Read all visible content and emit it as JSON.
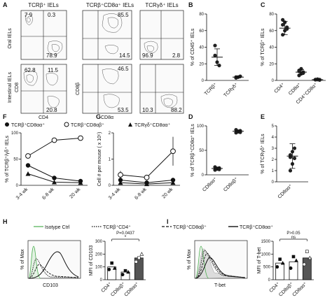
{
  "panel_letters": [
    "A",
    "B",
    "C",
    "D",
    "E",
    "F",
    "G",
    "H",
    "I"
  ],
  "A": {
    "col_titles": [
      "TCRβ⁺ IELs",
      "TCRβ⁺CD8α⁺ IELs",
      "TCRγδ⁺ IELs"
    ],
    "row_labels": [
      "Oral IELs",
      "Intestinal IELs"
    ],
    "axes": {
      "x1": "CD4",
      "y1": "CD8",
      "x2": "CD8α",
      "y2": "CD8β"
    },
    "oral": {
      "p1": [
        "7.9",
        "0.3",
        "78.9"
      ],
      "p2": [
        "85.5",
        "14.5"
      ],
      "p3": [
        "96.9",
        "2.8"
      ]
    },
    "intestinal": {
      "p1": [
        "62.8",
        "11.5",
        "20.8"
      ],
      "p2": [
        "46.5",
        "53.5"
      ],
      "p3": [
        "10.3",
        "88.2"
      ]
    }
  },
  "chart_data": [
    {
      "panel": "B",
      "type": "scatter",
      "ylabel": "% of CD45⁺ IELs",
      "ylim": [
        0,
        80
      ],
      "yticks": [
        0,
        20,
        40,
        60,
        80
      ],
      "categories": [
        "TCRβ⁺",
        "TCRγδ⁺"
      ],
      "points": [
        [
          30,
          22,
          18,
          42
        ],
        [
          3,
          4,
          5,
          4
        ]
      ],
      "means": [
        28,
        4
      ],
      "sd": [
        10,
        1
      ]
    },
    {
      "panel": "C",
      "type": "scatter",
      "ylabel": "% of TCRβ⁺ IELs",
      "ylim": [
        0,
        80
      ],
      "yticks": [
        0,
        20,
        40,
        60,
        80
      ],
      "categories": [
        "CD4⁺",
        "CD8α⁺",
        "CD4⁺CD8α⁺"
      ],
      "points": [
        [
          55,
          60,
          64,
          67,
          70,
          62,
          73
        ],
        [
          6,
          8,
          10,
          12,
          14,
          9,
          11
        ],
        [
          1,
          1,
          0.5,
          1,
          1.5,
          1,
          0.8
        ]
      ],
      "means": [
        63,
        10,
        1
      ],
      "sd": [
        8,
        3,
        0.5
      ]
    },
    {
      "panel": "D",
      "type": "scatter",
      "ylabel": "% of TCRβ⁺CD8α⁺ IELs",
      "ylim": [
        0,
        100
      ],
      "yticks": [
        0,
        50,
        100
      ],
      "categories": [
        "CD8αα⁺",
        "CD8αβ⁺"
      ],
      "points": [
        [
          10,
          12,
          14,
          16,
          13,
          11
        ],
        [
          86,
          88,
          90,
          92,
          89,
          87
        ]
      ],
      "means": [
        13,
        89
      ],
      "sd": [
        2,
        2
      ]
    },
    {
      "panel": "E",
      "type": "scatter",
      "ylabel": "% of TCRγδ⁺ IELs",
      "ylim": [
        0,
        5
      ],
      "yticks": [
        0,
        1,
        2,
        3,
        4,
        5
      ],
      "categories": [
        "CD8αα⁺"
      ],
      "points": [
        [
          1.0,
          1.6,
          2.1,
          2.4,
          2.7,
          3.0,
          2.2
        ]
      ],
      "means": [
        2.3
      ],
      "sd": [
        1.1
      ]
    },
    {
      "panel": "F",
      "type": "line",
      "ylabel": "% of TCRβ⁺/γδ⁺ IELs",
      "ylim": [
        0,
        100
      ],
      "yticks": [
        0,
        50,
        100
      ],
      "categories": [
        "3-4 wk",
        "6-8 wk",
        "20 wk"
      ],
      "legend": [
        "TCRβ⁺CD8αα⁺",
        "TCRβ⁺CD8αβ⁺",
        "TCRγδ⁺CD8αα⁺"
      ],
      "series": [
        {
          "name": "TCRβ⁺CD8αα⁺",
          "values": [
            38,
            14,
            8
          ]
        },
        {
          "name": "TCRβ⁺CD8αβ⁺",
          "values": [
            56,
            86,
            90
          ]
        },
        {
          "name": "TCRγδ⁺CD8αα⁺",
          "values": [
            22,
            6,
            5
          ]
        }
      ]
    },
    {
      "panel": "G",
      "type": "line",
      "ylabel": "Cell # per mouse ( x 10⁵)",
      "ylim": [
        0,
        2
      ],
      "yticks": [
        0,
        1,
        2
      ],
      "categories": [
        "3-4 wk",
        "6-8 wk",
        "20 wk"
      ],
      "series": [
        {
          "name": "TCRβ⁺CD8αα⁺",
          "values": [
            0.2,
            0.1,
            0.2
          ]
        },
        {
          "name": "TCRβ⁺CD8αβ⁺",
          "values": [
            0.4,
            0.3,
            1.3
          ],
          "err": [
            0.15,
            0.05,
            0.55
          ]
        },
        {
          "name": "TCRγδ⁺CD8αα⁺",
          "values": [
            0.1,
            0.05,
            0.1
          ]
        }
      ]
    },
    {
      "panel": "H",
      "type": "bar",
      "ylabel": "MFI of CD103",
      "ylim": [
        0,
        300
      ],
      "yticks": [
        0,
        100,
        200,
        300
      ],
      "categories": [
        "CD4⁺",
        "CD8αβ⁺",
        "CD8αα⁺"
      ],
      "values": [
        100,
        60,
        170
      ],
      "points": [
        [
          80,
          130,
          90
        ],
        [
          40,
          70,
          60
        ],
        [
          140,
          170,
          200
        ]
      ],
      "p_value": "P=0.0437"
    },
    {
      "panel": "I",
      "type": "bar",
      "ylabel": "MFI of T-bet",
      "ylim": [
        0,
        1500
      ],
      "yticks": [
        0,
        500,
        1000,
        1500
      ],
      "categories": [
        "CD4⁺",
        "CD8αβ⁺",
        "CD8αα⁺"
      ],
      "values": [
        650,
        700,
        850
      ],
      "points": [
        [
          500,
          800,
          650
        ],
        [
          450,
          900,
          750
        ],
        [
          600,
          1100,
          850
        ]
      ],
      "p_value": "P>0.05",
      "sig": "ns"
    }
  ],
  "hi_legend": [
    "Isotype Ctrl",
    "TCRβ⁺CD4⁺",
    "TCRβ⁺CD8αβ⁺",
    "TCRβ⁺CD8αα⁺"
  ],
  "H_hist": {
    "ylabel": "% of Max",
    "xlabel": "CD103"
  },
  "I_hist": {
    "ylabel": "% of Max",
    "xlabel": "T-bet"
  },
  "colors": {
    "dark_bar": "#555555",
    "light_bar": "#ffffff",
    "isotype": "#4caf50",
    "grey_fill": "#cccccc"
  }
}
